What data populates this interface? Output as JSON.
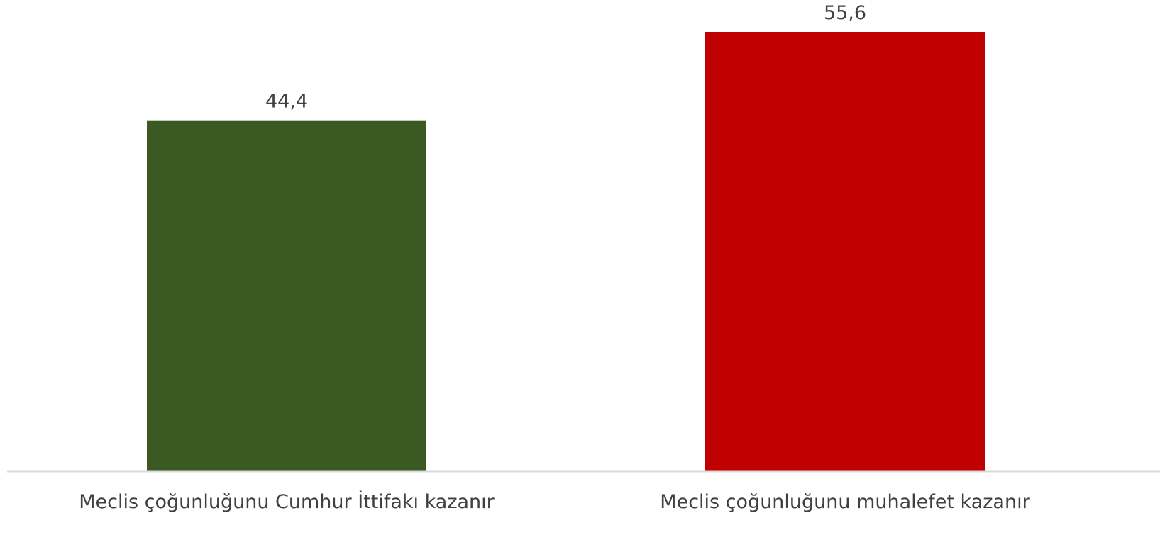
{
  "chart_data": {
    "type": "bar",
    "categories": [
      "Meclis çoğunluğunu Cumhur İttifakı kazanır",
      "Meclis çoğunluğunu muhalefet kazanır"
    ],
    "values": [
      44.4,
      55.6
    ],
    "value_labels": [
      "44,4",
      "55,6"
    ],
    "colors": [
      "#3b5a23",
      "#c00000"
    ],
    "ylim": [
      0,
      55.6
    ],
    "grid": false,
    "legend": "none",
    "axis_color": "#d9d9d9"
  }
}
